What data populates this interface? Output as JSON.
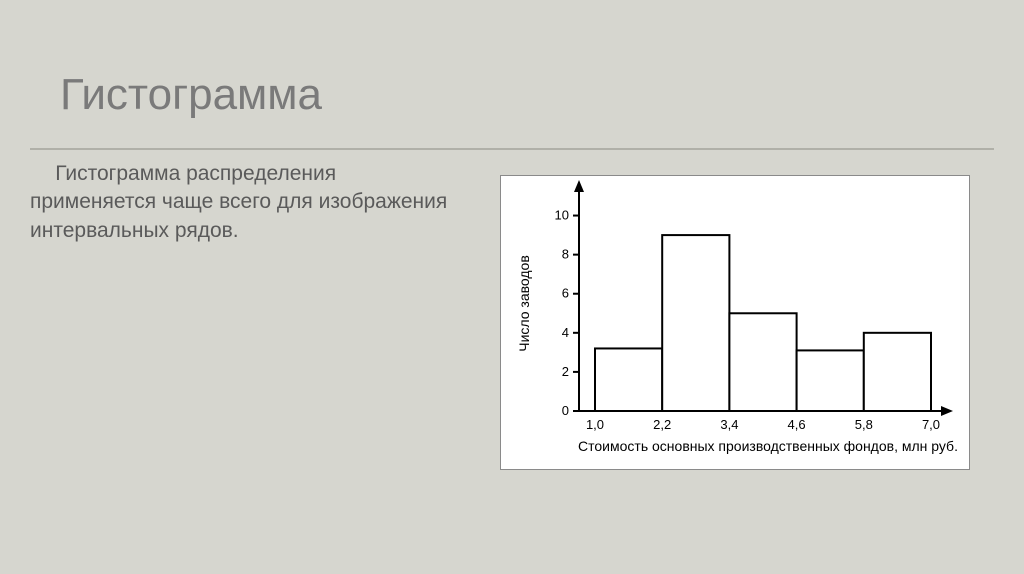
{
  "title": "Гистограмма",
  "body_text": "Гистограмма распределения применяется чаще всего для изображения интервальных рядов.",
  "chart": {
    "type": "histogram",
    "xlabel": "Стоимость основных производственных фондов, млн  руб.",
    "ylabel": "Число заводов",
    "x_ticks": [
      "1,0",
      "2,2",
      "3,4",
      "4,6",
      "5,8",
      "7,0"
    ],
    "y_ticks": [
      0,
      2,
      4,
      6,
      8,
      10
    ],
    "y_max": 11,
    "bars": [
      {
        "height": 3.2
      },
      {
        "height": 9.0
      },
      {
        "height": 5.0
      },
      {
        "height": 3.1
      },
      {
        "height": 4.0
      }
    ],
    "colors": {
      "bar_fill": "#ffffff",
      "bar_stroke": "#000000",
      "axis": "#000000",
      "text": "#000000",
      "frame_bg": "#ffffff"
    },
    "stroke_width": 2,
    "font_size_ticks": 13,
    "font_size_axis_label": 14
  }
}
